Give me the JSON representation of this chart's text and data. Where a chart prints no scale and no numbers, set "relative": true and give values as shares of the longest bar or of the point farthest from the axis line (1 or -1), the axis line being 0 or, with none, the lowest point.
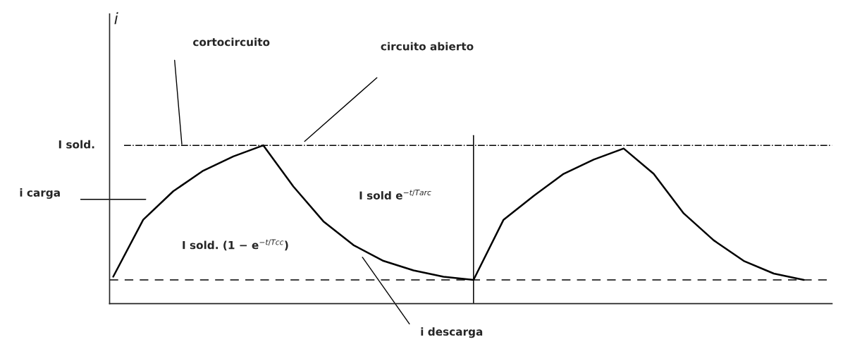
{
  "chart_data": {
    "type": "line",
    "relative": true,
    "categories": [
      null,
      null,
      null,
      null,
      null,
      null,
      null,
      null,
      null,
      null,
      null,
      null,
      null,
      null,
      null,
      null,
      null,
      null,
      null,
      null,
      null,
      null,
      null,
      null
    ],
    "series": [
      {
        "color": "#000000",
        "values": [
          0.17,
          0.53,
          0.71,
          0.84,
          0.93,
          1,
          0.74,
          0.52,
          0.37,
          0.27,
          0.21,
          0.17,
          0.15,
          0.53,
          0.68,
          0.82,
          0.91,
          0.98,
          0.82,
          0.57,
          0.4,
          0.27,
          0.19,
          0.15
        ]
      }
    ],
    "ref_lines": [
      {
        "axis": "y",
        "value": 1,
        "label": "I sold.",
        "line_style": "dashdot",
        "color": "#000000"
      },
      {
        "axis": "y",
        "value": 0.15,
        "line_style": "dashed",
        "color": "#000000"
      }
    ],
    "annotations": [
      "i",
      "cortocircuito",
      "circuito abierto",
      "i carga",
      "I sold. (1 − e$^{−t/Tcc}$)",
      "I sold e$^{−t/Tarc}$",
      "i descarga"
    ],
    "marker": "none",
    "line_style": "solid"
  }
}
